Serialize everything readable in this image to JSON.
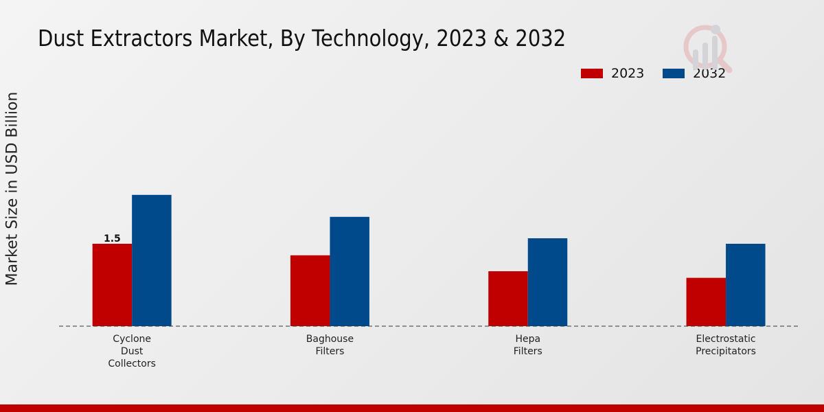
{
  "chart_data": {
    "type": "bar",
    "title": "Dust Extractors Market, By Technology, 2023 & 2032",
    "ylabel": "Market Size in USD Billion",
    "xlabel": "",
    "categories": [
      "Cyclone\nDust\nCollectors",
      "Baghouse\nFilters",
      "Hepa\nFilters",
      "Electrostatic\nPrecipitators"
    ],
    "series": [
      {
        "name": "2023",
        "color": "#c00000",
        "values": [
          1.5,
          1.29,
          1.0,
          0.88
        ]
      },
      {
        "name": "2032",
        "color": "#004a8c",
        "values": [
          2.39,
          1.99,
          1.6,
          1.5
        ]
      }
    ],
    "data_labels": [
      {
        "series": "2023",
        "category_index": 0,
        "text": "1.5"
      }
    ],
    "ylim": [
      0,
      5.9
    ],
    "grid": false,
    "legend_position": "top-right"
  }
}
